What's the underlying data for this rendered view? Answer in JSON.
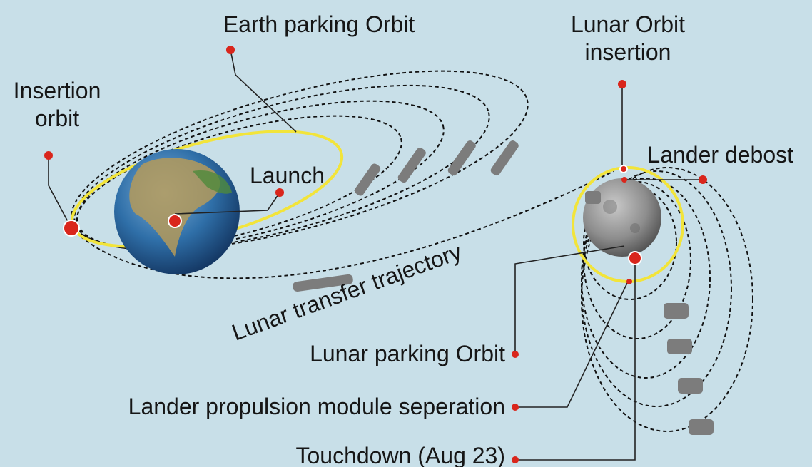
{
  "labels": {
    "earth_parking_orbit": "Earth parking Orbit",
    "lunar_orbit_insertion": [
      "Lunar Orbit",
      "insertion"
    ],
    "insertion_orbit": [
      "Insertion",
      "orbit"
    ],
    "launch": "Launch",
    "lander_debost": "Lander debost",
    "lunar_transfer_trajectory": "Lunar transfer trajectory",
    "lunar_parking_orbit": "Lunar parking Orbit",
    "lander_propulsion_module_seperation": "Lander propulsion module seperation",
    "touchdown": "Touchdown (Aug 23)"
  }
}
